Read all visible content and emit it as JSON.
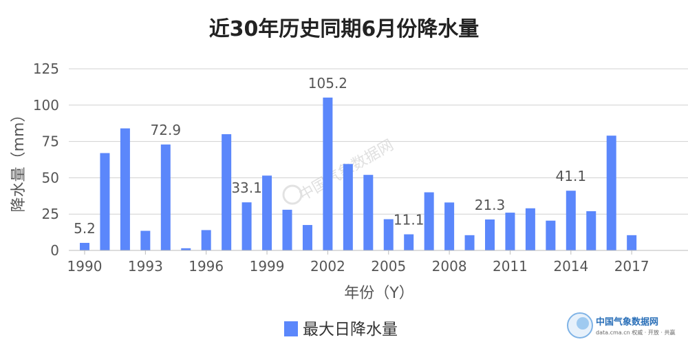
{
  "chart_data": {
    "type": "bar",
    "title": "近30年历史同期6月份降水量",
    "xlabel": "年份（Y）",
    "ylabel": "降水量（mm）",
    "ylim": [
      0,
      125
    ],
    "yticks": [
      0,
      25,
      50,
      75,
      100,
      125
    ],
    "grid": true,
    "legend_position": "bottom",
    "series": [
      {
        "name": "最大日降水量",
        "color": "#5b87fb",
        "x": [
          1990,
          1991,
          1992,
          1993,
          1994,
          1995,
          1996,
          1997,
          1998,
          1999,
          2000,
          2001,
          2002,
          2003,
          2004,
          2005,
          2006,
          2007,
          2008,
          2009,
          2010,
          2011,
          2012,
          2013,
          2014,
          2015,
          2016,
          2017
        ],
        "values": [
          5.2,
          67,
          84,
          13.5,
          72.9,
          1.5,
          14,
          80,
          33.1,
          51.5,
          28,
          17.5,
          105.2,
          59.5,
          52,
          21.5,
          11.1,
          40,
          33,
          10.5,
          21.3,
          26,
          29,
          20.5,
          41.1,
          27,
          79,
          10.5
        ]
      }
    ],
    "xticks": [
      "1990",
      "1993",
      "1996",
      "1999",
      "2002",
      "2005",
      "2008",
      "2011",
      "2014",
      "2017"
    ],
    "data_labels": [
      {
        "x": 1990,
        "text": "5.2"
      },
      {
        "x": 1994,
        "text": "72.9"
      },
      {
        "x": 1998,
        "text": "33.1"
      },
      {
        "x": 2002,
        "text": "105.2"
      },
      {
        "x": 2006,
        "text": "11.1"
      },
      {
        "x": 2010,
        "text": "21.3"
      },
      {
        "x": 2014,
        "text": "41.1"
      }
    ]
  },
  "watermark": {
    "center_text": "中国气象数据网",
    "corner_title": "中国气象数据网",
    "corner_sub": "data.cma.cn 权威 · 开放 · 共赢"
  }
}
